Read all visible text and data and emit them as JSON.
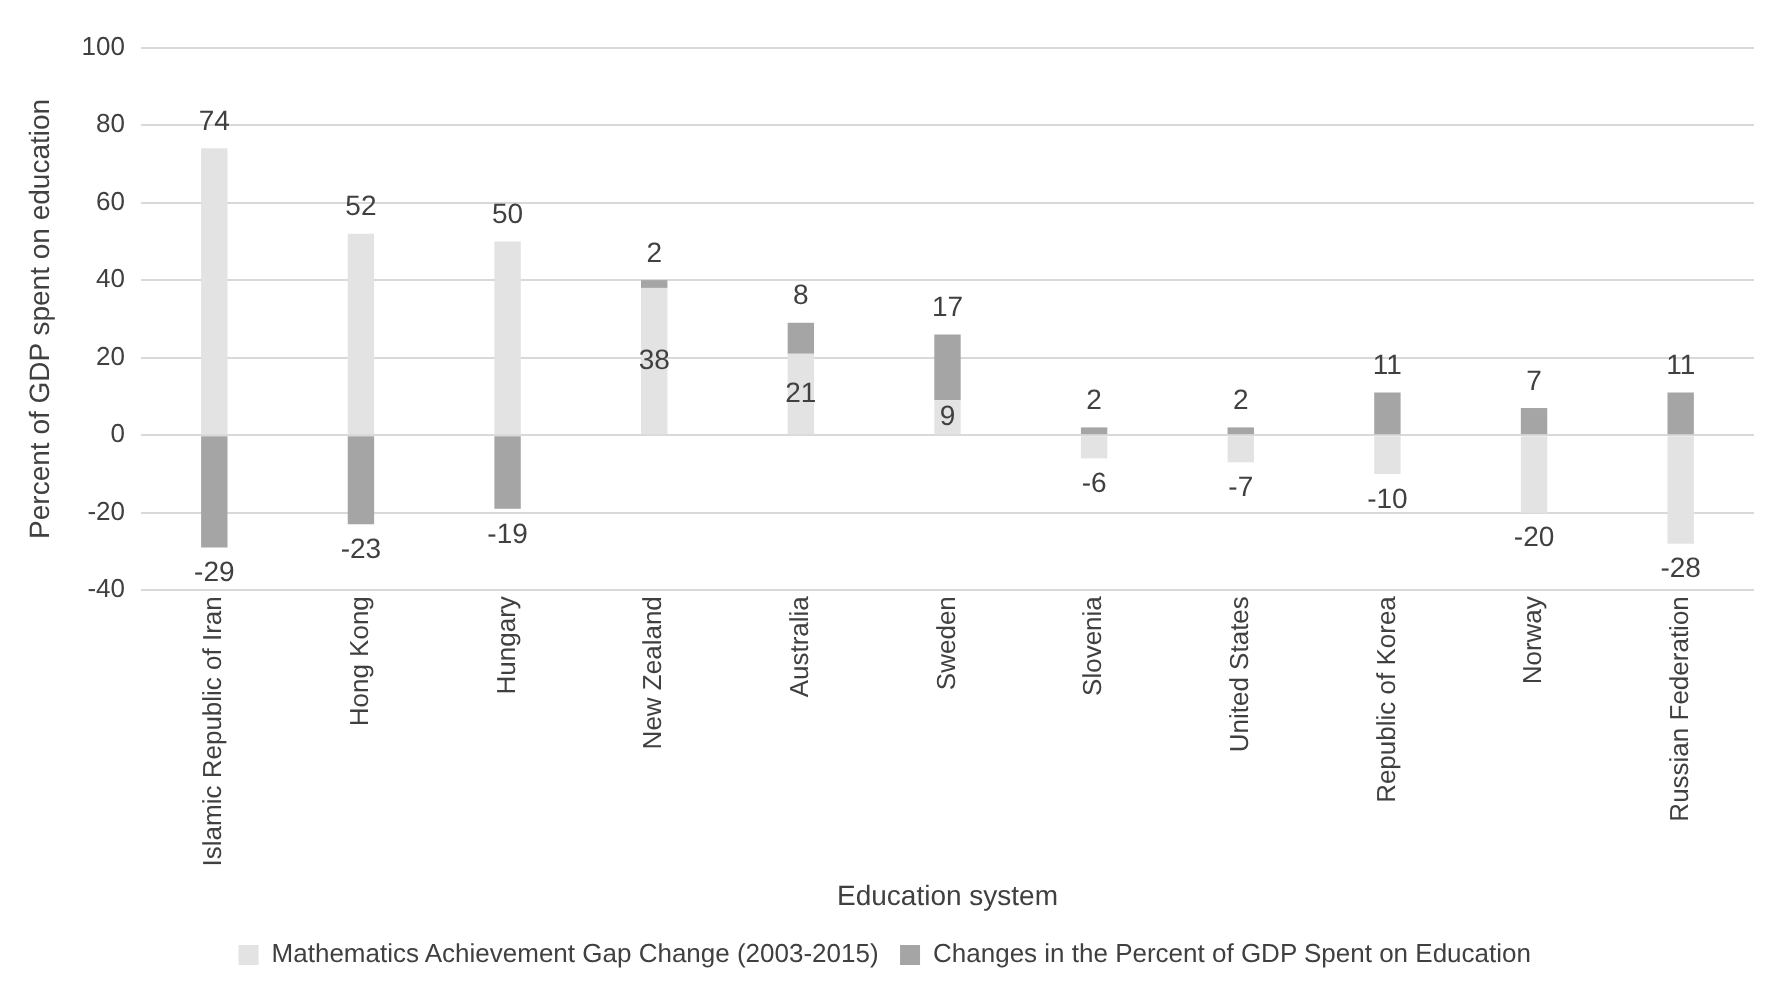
{
  "chart_data": {
    "type": "bar",
    "stacked": true,
    "xlabel": "Education system",
    "ylabel": "Percent of GDP spent on education",
    "categories": [
      "Islamic Republic of Iran",
      "Hong Kong",
      "Hungary",
      "New Zealand",
      "Australia",
      "Sweden",
      "Slovenia",
      "United States",
      "Republic of Korea",
      "Norway",
      "Russian Federation"
    ],
    "series": [
      {
        "name": "Mathematics Achievement Gap Change (2003-2015)",
        "color": "#e3e3e3",
        "values": [
          74,
          52,
          50,
          38,
          21,
          9,
          -6,
          -7,
          -10,
          -20,
          -28
        ]
      },
      {
        "name": "Changes in the Percent of GDP Spent on Education",
        "color": "#a5a5a5",
        "values": [
          -29,
          -23,
          -19,
          2,
          8,
          17,
          2,
          2,
          11,
          7,
          11
        ]
      }
    ],
    "ylim": [
      -40,
      100
    ],
    "yticks": [
      -40,
      -20,
      0,
      20,
      40,
      60,
      80,
      100
    ],
    "grid": "y",
    "legend": "bottom",
    "data_labels": true
  }
}
